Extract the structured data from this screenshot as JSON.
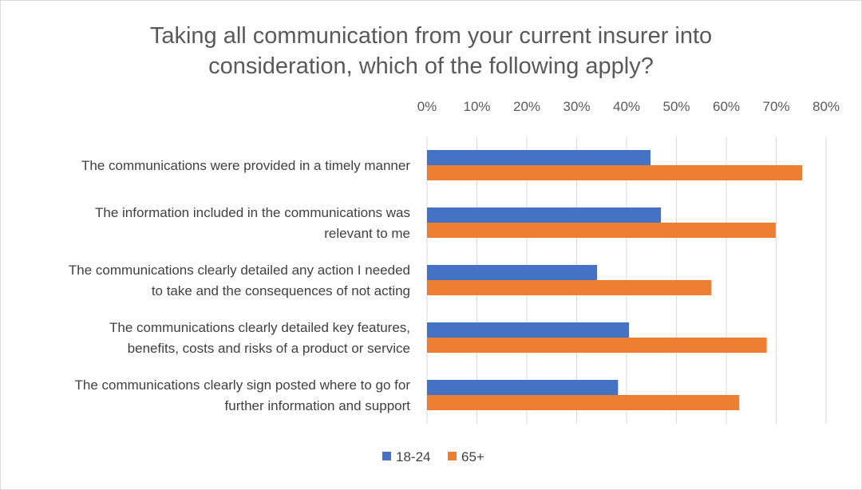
{
  "chart_data": {
    "type": "bar",
    "orientation": "horizontal",
    "title": "Taking all communication from your current insurer into consideration, which of the following apply?",
    "title_lines": [
      "Taking all communication from your current insurer into",
      "consideration, which of the following apply?"
    ],
    "categories": [
      "The communications were provided in a timely manner",
      "The information included in the communications was relevant to me",
      "The communications clearly detailed any action I needed to take and the consequences of not acting",
      "The communications clearly detailed key features, benefits, costs and risks of a product or service",
      "The communications clearly sign posted where to go for further information and support"
    ],
    "category_lines": [
      [
        "The communications were provided in a timely manner"
      ],
      [
        "The information included in the communications was",
        "relevant to me"
      ],
      [
        "The communications clearly detailed any action I needed",
        "to take and the consequences of not acting"
      ],
      [
        "The communications clearly detailed key features,",
        "benefits, costs and risks of a product or service"
      ],
      [
        "The communications clearly sign posted where to go for",
        "further information and support"
      ]
    ],
    "series": [
      {
        "name": "18-24",
        "color": "#4472c4",
        "values": [
          44.8,
          46.9,
          34.1,
          40.5,
          38.3
        ]
      },
      {
        "name": "65+",
        "color": "#ed7d31",
        "values": [
          75.2,
          69.9,
          57.0,
          68.1,
          62.6
        ]
      }
    ],
    "x_ticks": [
      "0%",
      "10%",
      "20%",
      "30%",
      "40%",
      "50%",
      "60%",
      "70%",
      "80%"
    ],
    "xlim": [
      0,
      80
    ],
    "x_axis_position": "top",
    "grid": true,
    "legend_position": "bottom"
  }
}
